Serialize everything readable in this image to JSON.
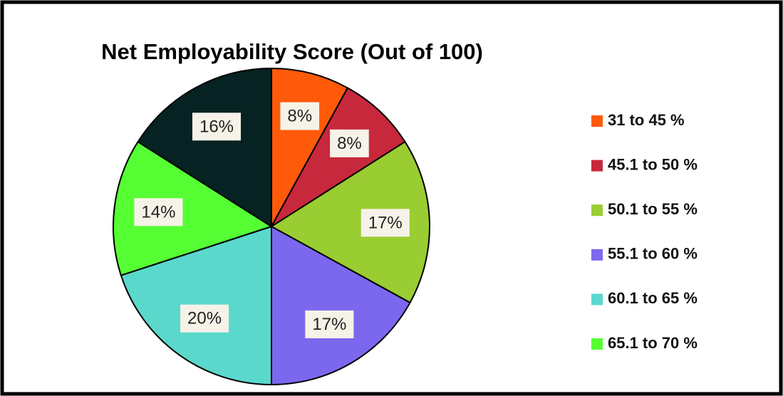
{
  "chart_data": {
    "type": "pie",
    "title": "Net Employability Score  (Out of 100)",
    "categories": [
      "31 to 45 %",
      "45.1 to 50 %",
      "50.1 to 55 %",
      "55.1 to 60 %",
      "60.1 to 65 %",
      "65.1 to 70 %",
      null
    ],
    "values": [
      8,
      8,
      17,
      17,
      20,
      14,
      16
    ],
    "value_labels": [
      "8%",
      "8%",
      "17%",
      "17%",
      "20%",
      "14%",
      "16%"
    ],
    "colors": [
      "#ff5a0a",
      "#c8283c",
      "#9acd32",
      "#7b68ee",
      "#5ad8cc",
      "#55ff33",
      "#062222"
    ],
    "legend": "right"
  }
}
